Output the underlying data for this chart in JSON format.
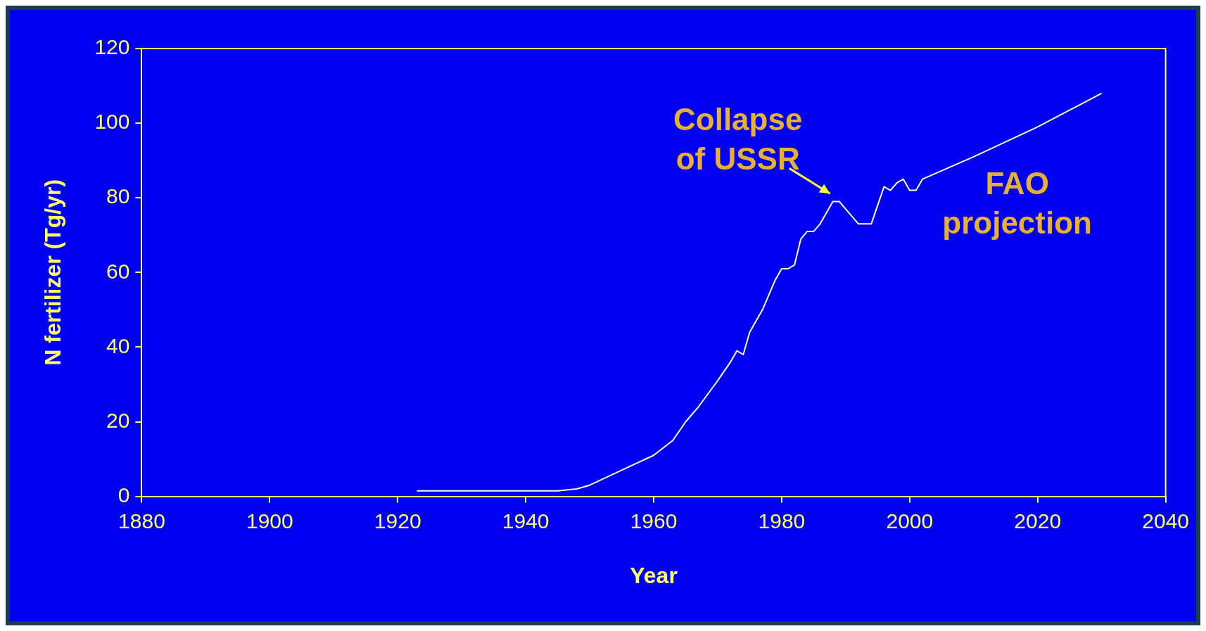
{
  "chart_data": {
    "type": "line",
    "xlabel": "Year",
    "ylabel": "N fertilizer (Tg/yr)",
    "x": [
      1923,
      1945,
      1948,
      1950,
      1955,
      1960,
      1963,
      1965,
      1967,
      1970,
      1972,
      1973,
      1974,
      1975,
      1977,
      1979,
      1980,
      1981,
      1982,
      1983,
      1984,
      1985,
      1986,
      1988,
      1989,
      1990,
      1992,
      1994,
      1995,
      1996,
      1997,
      1998,
      1999,
      2000,
      2001,
      2002,
      2010,
      2020,
      2030
    ],
    "series": [
      {
        "color": "#ffffcc",
        "values": [
          1.5,
          1.5,
          2,
          3,
          7,
          11,
          15,
          20,
          24,
          31,
          36,
          39,
          38,
          44,
          50,
          58,
          61,
          61,
          62,
          69,
          71,
          71,
          73,
          79,
          79,
          77,
          73,
          73,
          78,
          83,
          82,
          84,
          85,
          82,
          82,
          85,
          91,
          99,
          108
        ]
      }
    ],
    "xlim": [
      1880,
      2040
    ],
    "xticks": [
      1880,
      1900,
      1920,
      1940,
      1960,
      1980,
      2000,
      2020,
      2040
    ],
    "ylim": [
      0,
      120
    ],
    "yticks": [
      0,
      20,
      40,
      60,
      80,
      100,
      120
    ],
    "annotations": [
      {
        "text": "Collapse of USSR",
        "x": 1988,
        "y": 80
      },
      "FAO projection"
    ],
    "grid": false,
    "legend": false,
    "marker": "none",
    "line_style": "solid"
  }
}
